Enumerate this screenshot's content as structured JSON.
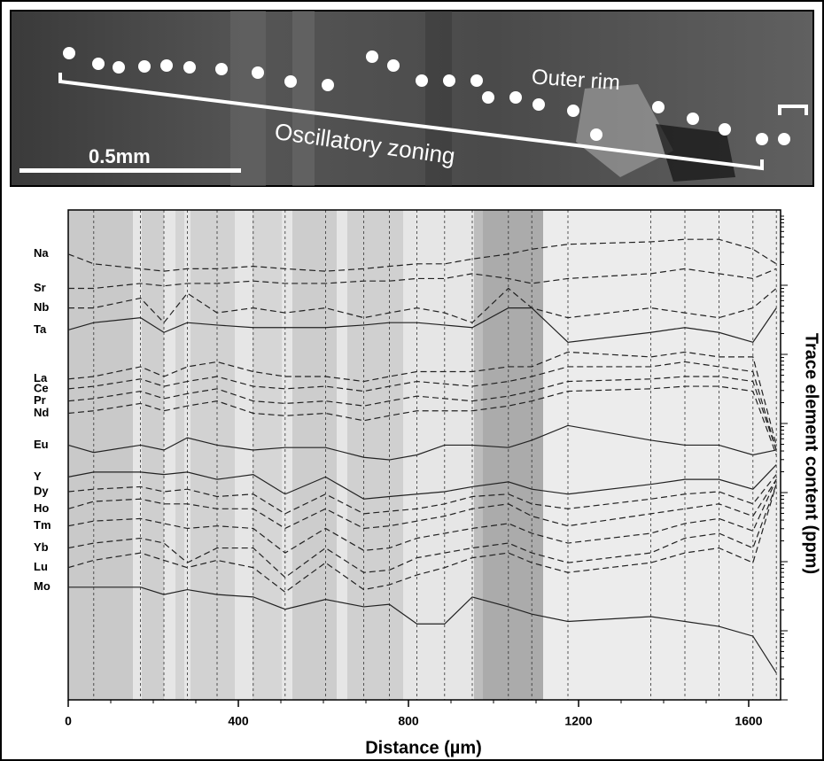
{
  "chart_data": {
    "type": "line",
    "annotations": [
      "Outer rim",
      "Oscillatory zoning",
      "0.5mm"
    ],
    "xlabel": "Distance (µm)",
    "ylabel": "Trace element content (ppm)",
    "x": [
      0,
      60,
      170,
      225,
      280,
      350,
      435,
      510,
      605,
      695,
      755,
      820,
      885,
      950,
      1035,
      1090,
      1175,
      1370,
      1450,
      1530,
      1610,
      1665
    ],
    "xlim": [
      0,
      1675
    ],
    "xticks": [
      0,
      400,
      800,
      1200,
      1600
    ],
    "ylim": [
      0,
      100
    ],
    "series": [
      {
        "name": "Na",
        "color": "#222",
        "style": "dashed",
        "values": [
          91,
          89,
          88,
          87.5,
          88,
          88,
          88.5,
          88,
          87.5,
          88,
          88.5,
          89,
          89,
          90,
          91,
          92,
          93,
          93.5,
          94,
          94,
          92,
          89
        ]
      },
      {
        "name": "Sr",
        "color": "#222",
        "style": "dashed",
        "values": [
          84,
          84,
          85,
          84.5,
          85,
          85,
          85.5,
          85,
          85,
          85.5,
          85.5,
          86,
          86,
          87,
          86,
          85,
          86,
          87,
          88,
          87,
          86,
          88
        ]
      },
      {
        "name": "Nb",
        "color": "#222",
        "style": "dashed",
        "values": [
          80,
          80,
          82,
          77,
          83,
          79,
          80,
          79,
          80,
          78,
          79,
          80,
          79,
          77,
          84,
          80,
          78,
          80,
          79,
          78,
          80,
          84
        ]
      },
      {
        "name": "Ta",
        "color": "#222",
        "style": "solid",
        "values": [
          75.5,
          77,
          78,
          75,
          77,
          76.5,
          76,
          76,
          76,
          76.5,
          77,
          77,
          76.5,
          76,
          80,
          80,
          73,
          75,
          76,
          75,
          73,
          80
        ]
      },
      {
        "name": "La",
        "color": "#222",
        "style": "dashed",
        "values": [
          65.5,
          66,
          68,
          66,
          68,
          69,
          67,
          66,
          66,
          65,
          66,
          67,
          67,
          67,
          68,
          68,
          71,
          70,
          71,
          70,
          70,
          52
        ]
      },
      {
        "name": "Ce",
        "color": "#222",
        "style": "dashed",
        "values": [
          63.5,
          64,
          65.5,
          64,
          65,
          66,
          64,
          63.5,
          64,
          63,
          64,
          65,
          64.5,
          64,
          65,
          66,
          68,
          68,
          69,
          68,
          67,
          51
        ]
      },
      {
        "name": "Pr",
        "color": "#222",
        "style": "dashed",
        "values": [
          61,
          61.5,
          63,
          61.5,
          62.5,
          63.5,
          61,
          60.5,
          61,
          60,
          61,
          62,
          61.5,
          61,
          62,
          63,
          65,
          65.5,
          66,
          66,
          65,
          51
        ]
      },
      {
        "name": "Nd",
        "color": "#222",
        "style": "dashed",
        "values": [
          58.5,
          59,
          60.5,
          59,
          60,
          61,
          58.5,
          58,
          58.5,
          57,
          58,
          59,
          59,
          59,
          60,
          61,
          63,
          63.5,
          64,
          64,
          63,
          50
        ]
      },
      {
        "name": "Eu",
        "color": "#222",
        "style": "solid",
        "values": [
          52,
          50.5,
          52,
          51,
          53.5,
          52,
          51,
          51.5,
          51.5,
          49.5,
          49,
          50,
          52,
          52,
          51.5,
          53,
          56,
          53,
          52,
          52,
          50,
          51
        ]
      },
      {
        "name": "Y",
        "color": "#222",
        "style": "solid",
        "values": [
          45.5,
          46.5,
          46.5,
          46,
          46.5,
          45,
          46,
          42,
          45.5,
          41,
          41.5,
          42,
          42.5,
          43.5,
          44.5,
          43,
          42,
          44,
          45,
          45,
          43,
          48
        ]
      },
      {
        "name": "Dy",
        "color": "#222",
        "style": "dashed",
        "values": [
          42.5,
          43,
          43.5,
          42.5,
          43,
          41.5,
          42,
          38,
          42,
          38,
          38.5,
          39,
          40,
          41.5,
          42,
          40,
          39,
          41,
          42,
          42.5,
          40,
          46
        ]
      },
      {
        "name": "Ho",
        "color": "#222",
        "style": "dashed",
        "values": [
          39,
          40.5,
          41,
          40,
          40,
          39,
          39,
          35,
          39,
          35,
          35.5,
          36.5,
          37.5,
          39,
          40,
          37.5,
          35.5,
          38,
          39,
          40,
          37.5,
          45
        ]
      },
      {
        "name": "Tm",
        "color": "#222",
        "style": "dashed",
        "values": [
          35.5,
          36.5,
          37,
          36,
          35,
          35.5,
          35,
          30,
          35,
          30.5,
          31,
          33,
          34,
          35,
          36,
          34,
          32,
          34,
          36,
          37,
          34.5,
          45
        ]
      },
      {
        "name": "Yb",
        "color": "#222",
        "style": "dashed",
        "values": [
          31,
          32,
          33,
          32,
          28,
          31,
          31,
          25,
          31,
          26,
          26.5,
          29,
          30,
          31,
          32,
          30,
          28,
          30,
          33,
          34,
          31,
          44
        ]
      },
      {
        "name": "Lu",
        "color": "#222",
        "style": "dashed",
        "values": [
          27,
          28.5,
          30,
          28.5,
          27,
          28.5,
          27,
          22,
          28,
          22.5,
          23.5,
          25.5,
          27,
          29,
          30,
          28,
          26,
          28,
          30,
          31,
          28,
          44
        ]
      },
      {
        "name": "Mo",
        "color": "#222",
        "style": "solid",
        "values": [
          23,
          23,
          23,
          21.5,
          22.5,
          21.5,
          21,
          18.5,
          20.5,
          19,
          19.5,
          15.5,
          15.5,
          21,
          19,
          17.5,
          16,
          17,
          16,
          15,
          13,
          5.5
        ]
      }
    ]
  }
}
